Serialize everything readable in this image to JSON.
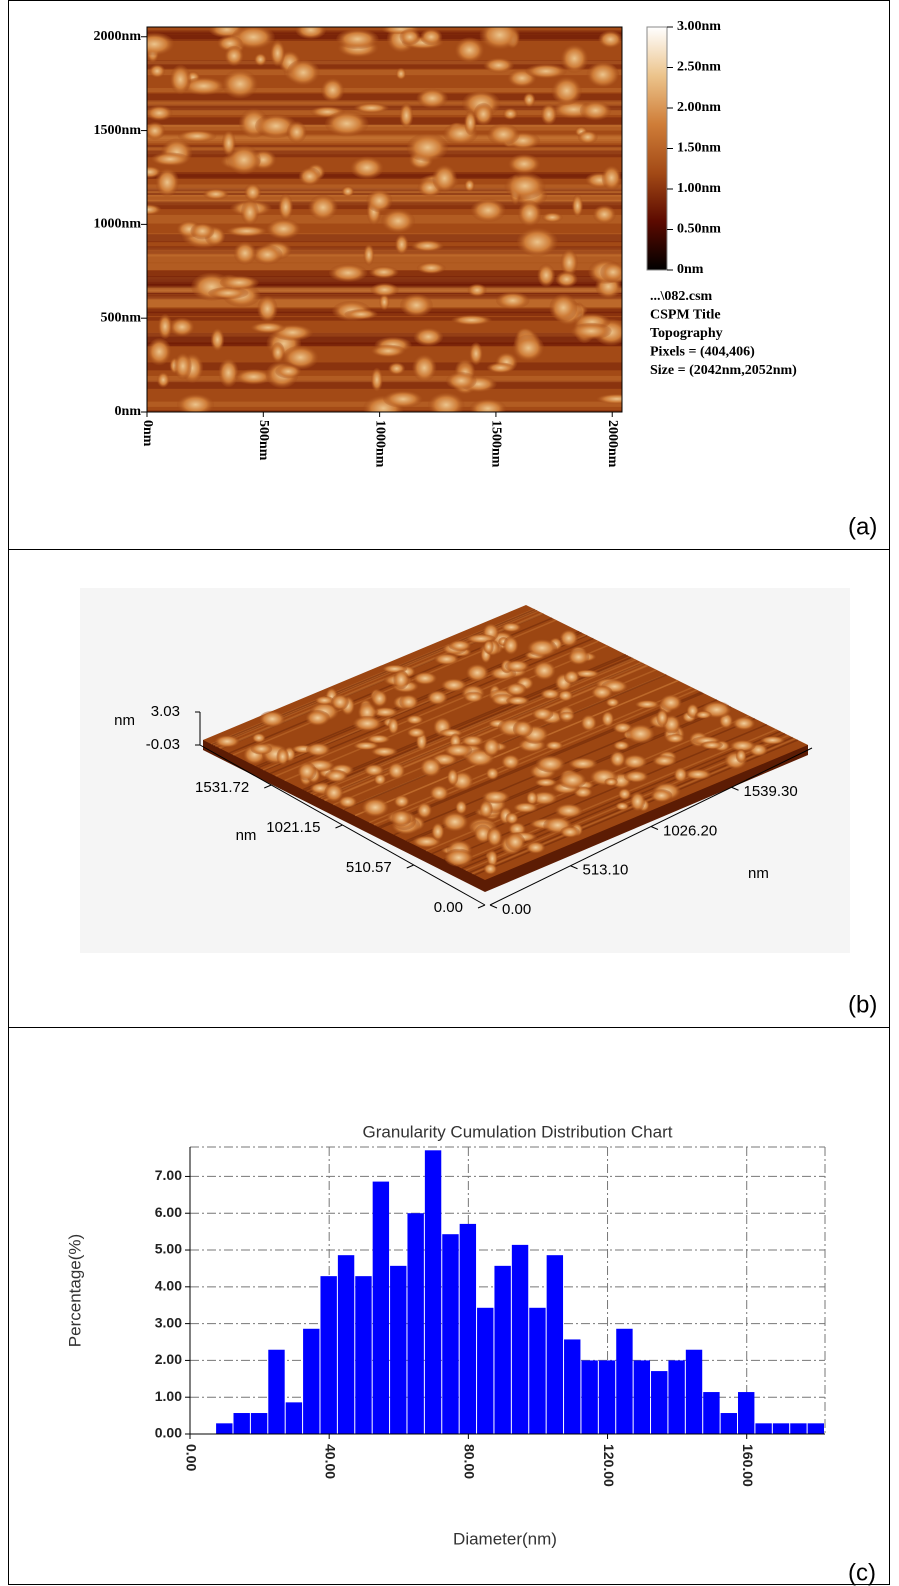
{
  "chart_data": [
    {
      "type": "image",
      "panel_label": "(a)",
      "xlim": [
        0,
        2042
      ],
      "ylim": [
        0,
        2052
      ],
      "xticks": [
        {
          "value": 0,
          "label": "0nm"
        },
        {
          "value": 500,
          "label": "500nm"
        },
        {
          "value": 1000,
          "label": "1000nm"
        },
        {
          "value": 1500,
          "label": "1500nm"
        },
        {
          "value": 2000,
          "label": "2000nm"
        }
      ],
      "yticks": [
        {
          "value": 0,
          "label": "0nm"
        },
        {
          "value": 500,
          "label": "500nm"
        },
        {
          "value": 1000,
          "label": "1000nm"
        },
        {
          "value": 1500,
          "label": "1500nm"
        },
        {
          "value": 2000,
          "label": "2000nm"
        }
      ],
      "clim": [
        0,
        3
      ],
      "cticks": [
        {
          "value": 0,
          "label": "0nm"
        },
        {
          "value": 0.5,
          "label": "0.50nm"
        },
        {
          "value": 1,
          "label": "1.00nm"
        },
        {
          "value": 1.5,
          "label": "1.50nm"
        },
        {
          "value": 2,
          "label": "2.00nm"
        },
        {
          "value": 2.5,
          "label": "2.50nm"
        },
        {
          "value": 3,
          "label": "3.00nm"
        }
      ],
      "colormap": [
        "#000000",
        "#5c0a00",
        "#a34a16",
        "#cf7d38",
        "#ecc48c",
        "#ffffff"
      ],
      "info": [
        "...\\082.csm",
        "CSPM Title",
        "Topography",
        "Pixels = (404,406)",
        "Size = (2042nm,2052nm)"
      ]
    },
    {
      "type": "surface3d",
      "panel_label": "(b)",
      "xlim": [
        0,
        2052.4
      ],
      "xticks": [
        {
          "value": 0,
          "label": "0.00"
        },
        {
          "value": 513.1,
          "label": "513.10"
        },
        {
          "value": 1026.2,
          "label": "1026.20"
        },
        {
          "value": 1539.3,
          "label": "1539.30"
        }
      ],
      "xlabel": "nm",
      "ylim": [
        0,
        2042.3
      ],
      "yticks": [
        {
          "value": 0,
          "label": "0.00"
        },
        510.57,
        1021.15,
        1531.72
      ],
      "ylabel": "nm",
      "zlim": [
        -0.03,
        3.03
      ],
      "zticks": [
        -0.03,
        3.03
      ],
      "zlabel": "nm",
      "colormap": [
        "#5c1c04",
        "#9c4612",
        "#cf7d38",
        "#f2cf9c"
      ]
    },
    {
      "type": "histogram",
      "panel_label": "(c)",
      "title": "Granularity Cumulation Distribution  Chart",
      "xlabel": "Diameter(nm)",
      "ylabel": "Percentage(%)",
      "bins": [
        7.5,
        12.5,
        17.5,
        22.5,
        27.5,
        32.5,
        37.5,
        42.5,
        47.5,
        52.5,
        57.5,
        62.5,
        67.5,
        72.5,
        77.5,
        82.5,
        87.5,
        92.5,
        97.5,
        102.5,
        107.5,
        112.5,
        117.5,
        122.5,
        127.5,
        132.5,
        137.5,
        142.5,
        147.5,
        152.5,
        157.5,
        162.5,
        167.5,
        172.5,
        177.5,
        182.5
      ],
      "values": [
        0.29,
        0.57,
        0.57,
        2.29,
        0.86,
        2.86,
        4.29,
        4.86,
        4.29,
        6.86,
        4.57,
        6.0,
        7.71,
        5.43,
        5.71,
        3.43,
        4.57,
        5.14,
        3.43,
        4.86,
        2.57,
        2.0,
        2.0,
        2.86,
        2.0,
        1.71,
        2.0,
        2.29,
        1.14,
        0.57,
        1.14,
        0.29,
        0.29,
        0.29,
        0.29
      ],
      "color": "#0000ff",
      "grid": true,
      "xlim": [
        0,
        182.5
      ],
      "xticks": [
        {
          "value": 0,
          "label": "0.00"
        },
        {
          "value": 40,
          "label": "40.00"
        },
        {
          "value": 80,
          "label": "80.00"
        },
        {
          "value": 120,
          "label": "120.00"
        },
        {
          "value": 160,
          "label": "160.00"
        }
      ],
      "ylim": [
        0,
        7.8
      ],
      "yticks": [
        {
          "value": 0,
          "label": "0.00"
        },
        {
          "value": 1,
          "label": "1.00"
        },
        {
          "value": 2,
          "label": "2.00"
        },
        {
          "value": 3,
          "label": "3.00"
        },
        {
          "value": 4,
          "label": "4.00"
        },
        {
          "value": 5,
          "label": "5.00"
        },
        {
          "value": 6,
          "label": "6.00"
        },
        {
          "value": 7,
          "label": "7.00"
        }
      ]
    }
  ]
}
